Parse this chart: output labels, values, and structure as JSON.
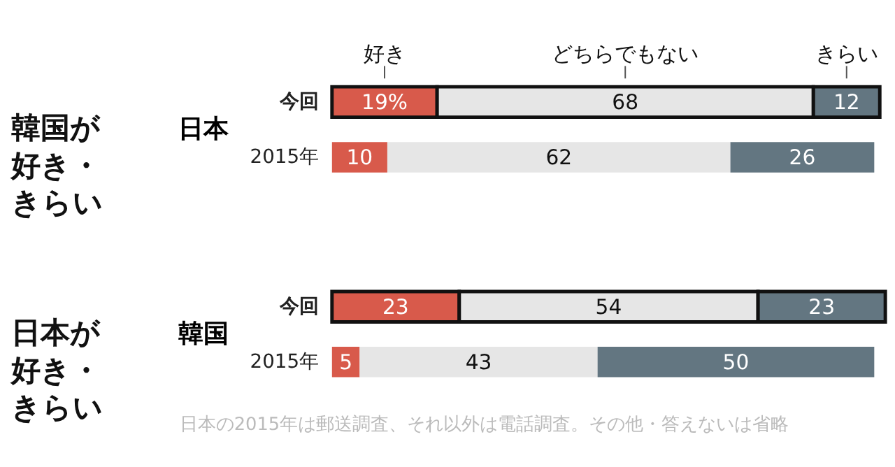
{
  "chart_data": [
    {
      "type": "bar",
      "orientation": "horizontal",
      "stacked": true,
      "title": "韓国が好き・きらい",
      "ylabel": "日本",
      "categories": [
        "今回",
        "2015年"
      ],
      "legend": "top",
      "data_labels": true,
      "series": [
        {
          "name": "好き",
          "color": "#d85a4b",
          "values": [
            19,
            10
          ],
          "value_labels": [
            "19%",
            "10"
          ]
        },
        {
          "name": "どちらでもない",
          "color": "#e6e6e6",
          "values": [
            68,
            62
          ]
        },
        {
          "name": "きらい",
          "color": "#637681",
          "values": [
            12,
            26
          ]
        }
      ]
    },
    {
      "type": "bar",
      "orientation": "horizontal",
      "stacked": true,
      "title": "日本が好き・きらい",
      "ylabel": "韓国",
      "categories": [
        "今回",
        "2015年"
      ],
      "data_labels": true,
      "annotations": [
        "日本の2015年は郵送調査、それ以外は電話調査。その他・答えないは省略"
      ],
      "series": [
        {
          "color": "#d85a4b",
          "values": [
            23,
            5
          ]
        },
        {
          "color": "#e6e6e6",
          "values": [
            54,
            43
          ]
        },
        {
          "color": "#637681",
          "values": [
            23,
            50
          ]
        }
      ]
    }
  ]
}
